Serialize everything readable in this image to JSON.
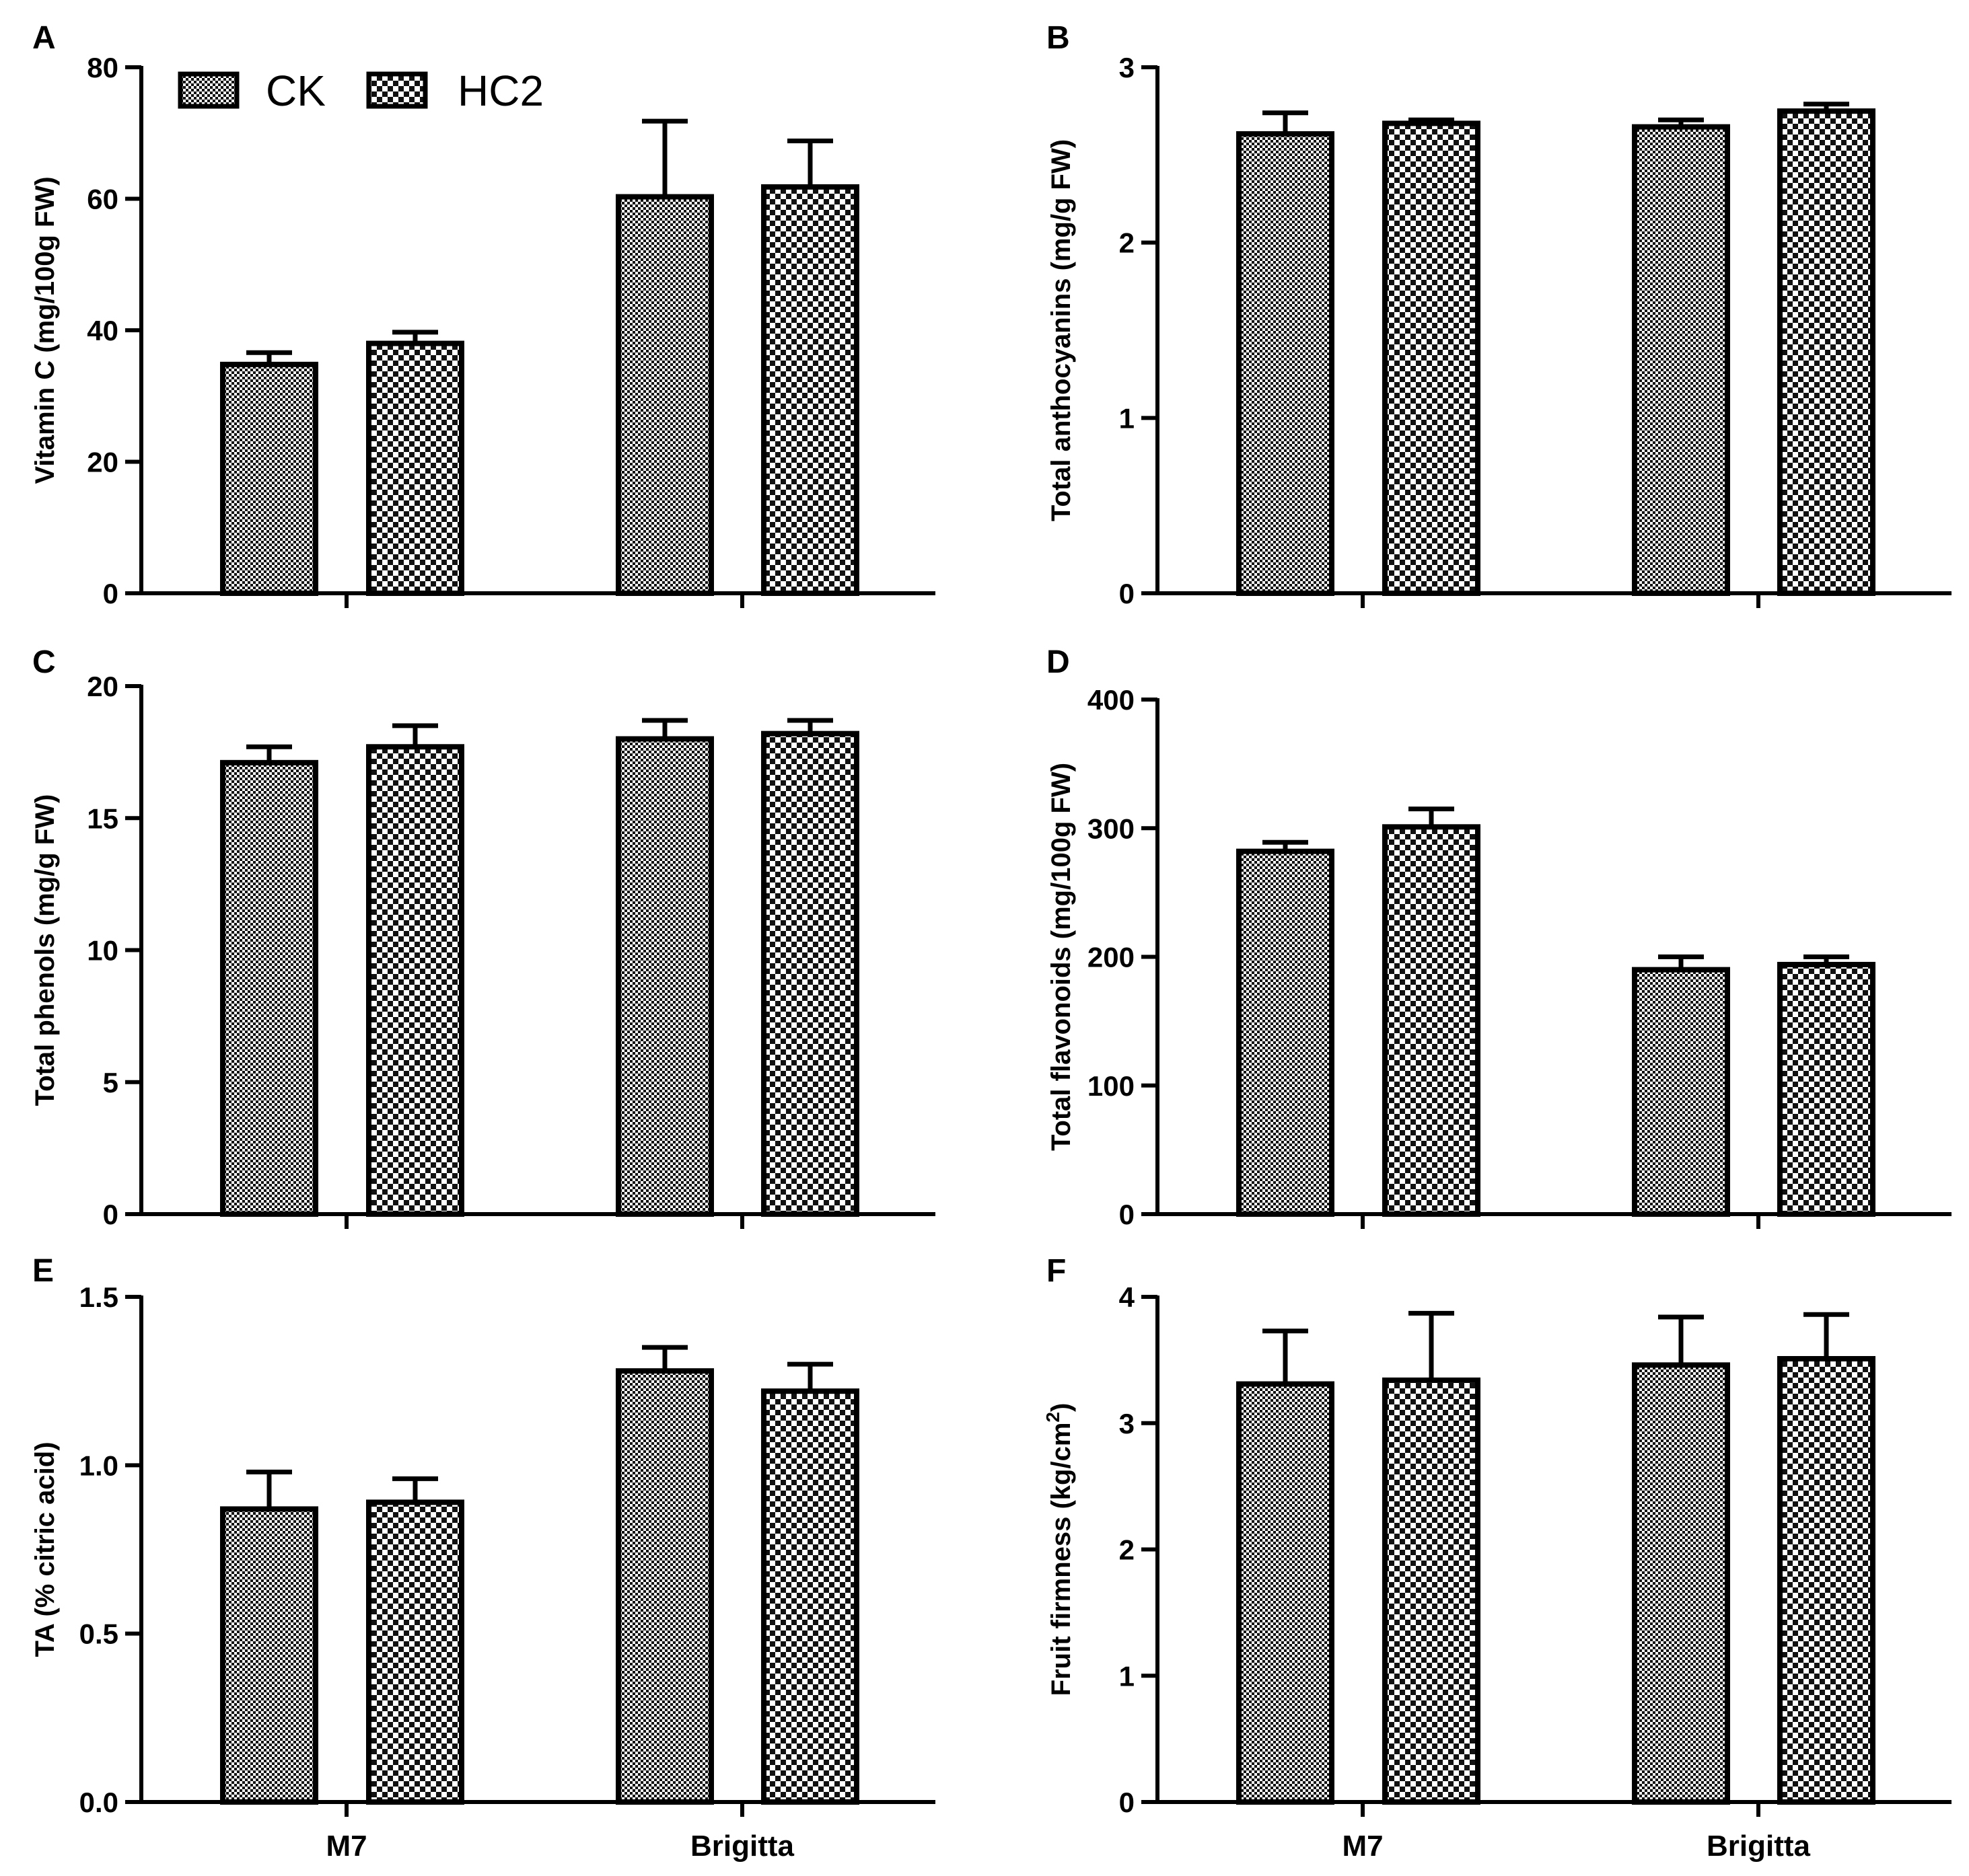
{
  "figure": {
    "legend": [
      {
        "name": "CK",
        "pattern": "fine-check"
      },
      {
        "name": "HC2",
        "pattern": "coarse-check"
      }
    ],
    "categories": [
      "M7",
      "Brigitta"
    ]
  },
  "chart_data": [
    {
      "panel": "A",
      "type": "bar",
      "ylabel": "Vitamin C  (mg/100g FW)",
      "ylim": [
        0,
        80
      ],
      "yticks": [
        "0",
        "20",
        "40",
        "60",
        "80"
      ],
      "ytick_values": [
        0,
        20,
        40,
        60,
        80
      ],
      "categories": [
        "M7",
        "Brigitta"
      ],
      "show_category_labels": false,
      "legend": "top-left",
      "series": [
        {
          "name": "CK",
          "values": [
            34.8,
            60.3
          ],
          "errors": [
            1.8,
            11.5
          ]
        },
        {
          "name": "HC2",
          "values": [
            38.0,
            61.8
          ],
          "errors": [
            1.7,
            7.0
          ]
        }
      ]
    },
    {
      "panel": "B",
      "type": "bar",
      "ylabel": "Total anthocyanins (mg/g FW)",
      "ylim": [
        0,
        3
      ],
      "yticks": [
        "0",
        "1",
        "2",
        "3"
      ],
      "ytick_values": [
        0,
        1,
        2,
        3
      ],
      "categories": [
        "M7",
        "Brigitta"
      ],
      "show_category_labels": false,
      "series": [
        {
          "name": "CK",
          "values": [
            2.62,
            2.66
          ],
          "errors": [
            0.12,
            0.04
          ]
        },
        {
          "name": "HC2",
          "values": [
            2.68,
            2.75
          ],
          "errors": [
            0.02,
            0.04
          ]
        }
      ]
    },
    {
      "panel": "C",
      "type": "bar",
      "ylabel": "Total phenols (mg/g FW)",
      "ylim": [
        0,
        20
      ],
      "yticks": [
        "0",
        "5",
        "10",
        "15",
        "20"
      ],
      "ytick_values": [
        0,
        5,
        10,
        15,
        20
      ],
      "categories": [
        "M7",
        "Brigitta"
      ],
      "show_category_labels": false,
      "series": [
        {
          "name": "CK",
          "values": [
            17.1,
            18.0
          ],
          "errors": [
            0.6,
            0.7
          ]
        },
        {
          "name": "HC2",
          "values": [
            17.7,
            18.2
          ],
          "errors": [
            0.8,
            0.5
          ]
        }
      ]
    },
    {
      "panel": "D",
      "type": "bar",
      "ylabel": "Total flavonoids (mg/100g FW)",
      "ylim": [
        0,
        400
      ],
      "yticks": [
        "0",
        "100",
        "200",
        "300",
        "400"
      ],
      "ytick_values": [
        0,
        100,
        200,
        300,
        400
      ],
      "categories": [
        "M7",
        "Brigitta"
      ],
      "show_category_labels": false,
      "series": [
        {
          "name": "CK",
          "values": [
            282,
            190
          ],
          "errors": [
            7,
            10
          ]
        },
        {
          "name": "HC2",
          "values": [
            301,
            194
          ],
          "errors": [
            14,
            6
          ]
        }
      ]
    },
    {
      "panel": "E",
      "type": "bar",
      "ylabel": "TA (% citric acid)",
      "ylim": [
        0,
        1.5
      ],
      "yticks": [
        "0.0",
        "0.5",
        "1.0",
        "1.5"
      ],
      "ytick_values": [
        0,
        0.5,
        1.0,
        1.5
      ],
      "categories": [
        "M7",
        "Brigitta"
      ],
      "show_category_labels": true,
      "series": [
        {
          "name": "CK",
          "values": [
            0.87,
            1.28
          ],
          "errors": [
            0.11,
            0.07
          ]
        },
        {
          "name": "HC2",
          "values": [
            0.89,
            1.22
          ],
          "errors": [
            0.07,
            0.08
          ]
        }
      ]
    },
    {
      "panel": "F",
      "type": "bar",
      "ylabel": "Fruit firmness (kg/cm",
      "ylabel_superscript": "2",
      "ylabel_suffix": ")",
      "ylim": [
        0,
        4
      ],
      "yticks": [
        "0",
        "1",
        "2",
        "3",
        "4"
      ],
      "ytick_values": [
        0,
        1,
        2,
        3,
        4
      ],
      "categories": [
        "M7",
        "Brigitta"
      ],
      "show_category_labels": true,
      "series": [
        {
          "name": "CK",
          "values": [
            3.31,
            3.46
          ],
          "errors": [
            0.42,
            0.38
          ]
        },
        {
          "name": "HC2",
          "values": [
            3.34,
            3.51
          ],
          "errors": [
            0.53,
            0.35
          ]
        }
      ]
    }
  ]
}
